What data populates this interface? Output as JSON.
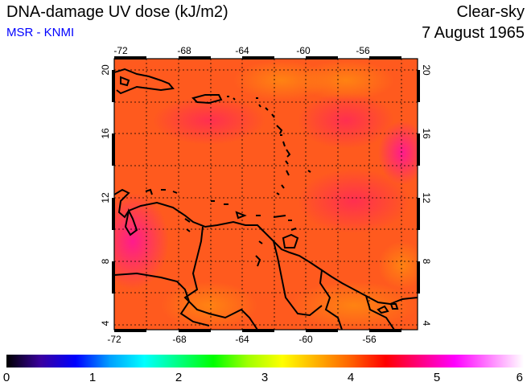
{
  "header": {
    "title": "DNA-damage UV dose (kJ/m2)",
    "source": "MSR - KNMI",
    "condition": "Clear-sky",
    "date": "7 August 1965"
  },
  "map": {
    "lon_ticks": [
      "-72",
      "-68",
      "-64",
      "-60",
      "-56"
    ],
    "lat_ticks": [
      "20",
      "16",
      "12",
      "8",
      "4"
    ],
    "lon_range": [
      -72,
      -53
    ],
    "lat_range": [
      3.5,
      20.5
    ]
  },
  "colorbar": {
    "labels": [
      "0",
      "1",
      "2",
      "3",
      "4",
      "5",
      "6"
    ],
    "range": [
      0,
      6
    ],
    "colors": [
      "#000000",
      "#3a00a0",
      "#0000ff",
      "#00a0ff",
      "#00ffff",
      "#00ff80",
      "#00ff00",
      "#a0ff00",
      "#ffff00",
      "#ffb000",
      "#ff6000",
      "#ff0000",
      "#ff0080",
      "#ff00ff",
      "#ff80ff",
      "#ffffff"
    ]
  },
  "colors": {
    "field_main": "#ff5a1e",
    "field_high": "#ff2a4e",
    "field_low": "#ff7a10",
    "coastline": "#000000",
    "source_text": "#0000ff"
  }
}
